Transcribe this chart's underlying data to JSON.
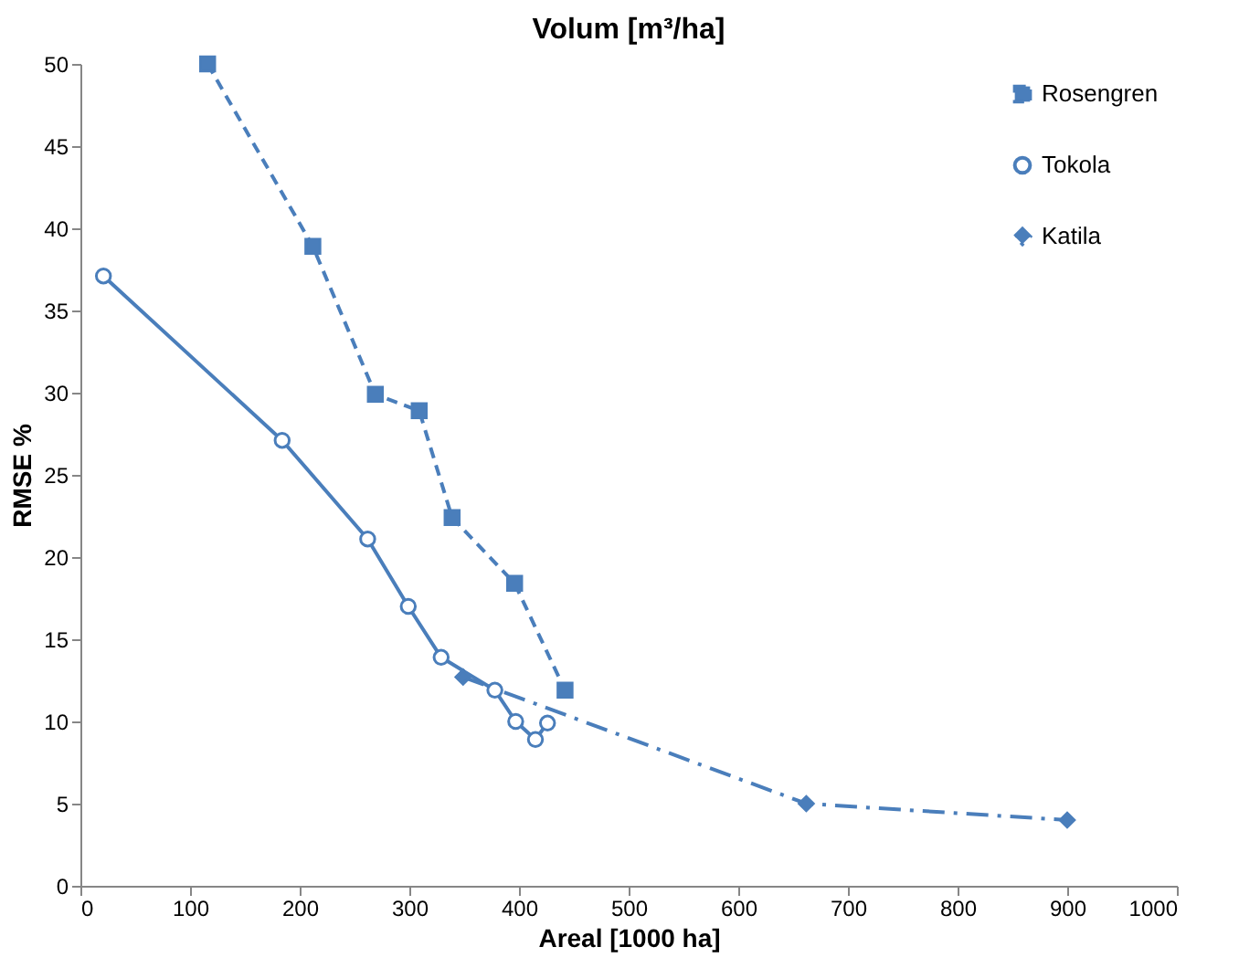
{
  "chart_data": {
    "type": "line",
    "title": "Volum [m³/ha]",
    "xlabel": "Areal [1000 ha]",
    "ylabel": "RMSE %",
    "xlim": [
      0,
      1000
    ],
    "xticks": [
      0,
      100,
      200,
      300,
      400,
      500,
      600,
      700,
      800,
      900,
      1000
    ],
    "ylim": [
      0,
      50
    ],
    "yticks": [
      0,
      5,
      10,
      15,
      20,
      25,
      30,
      35,
      40,
      45,
      50
    ],
    "grid": false,
    "legend": "top right",
    "series": [
      {
        "name": "Rosengren",
        "color": "#4a7ebb",
        "marker": "square",
        "line_style": "dashed",
        "x": [
          116,
          212,
          269,
          309,
          339,
          396,
          442
        ],
        "values": [
          50,
          38.9,
          29.9,
          28.9,
          22.4,
          18.4,
          11.9
        ]
      },
      {
        "name": "Tokola",
        "color": "#4a7ebb",
        "marker": "circle",
        "line_style": "solid",
        "x": [
          21,
          184,
          262,
          299,
          329,
          378,
          397,
          415,
          426
        ],
        "values": [
          37.1,
          27.1,
          21.1,
          17.0,
          13.9,
          11.9,
          10.0,
          8.9,
          9.9
        ]
      },
      {
        "name": "Katila",
        "color": "#4a7ebb",
        "marker": "diamond",
        "line_style": "dashdot",
        "x": [
          349,
          662,
          900
        ],
        "values": [
          12.7,
          5.0,
          4.0
        ]
      }
    ]
  }
}
